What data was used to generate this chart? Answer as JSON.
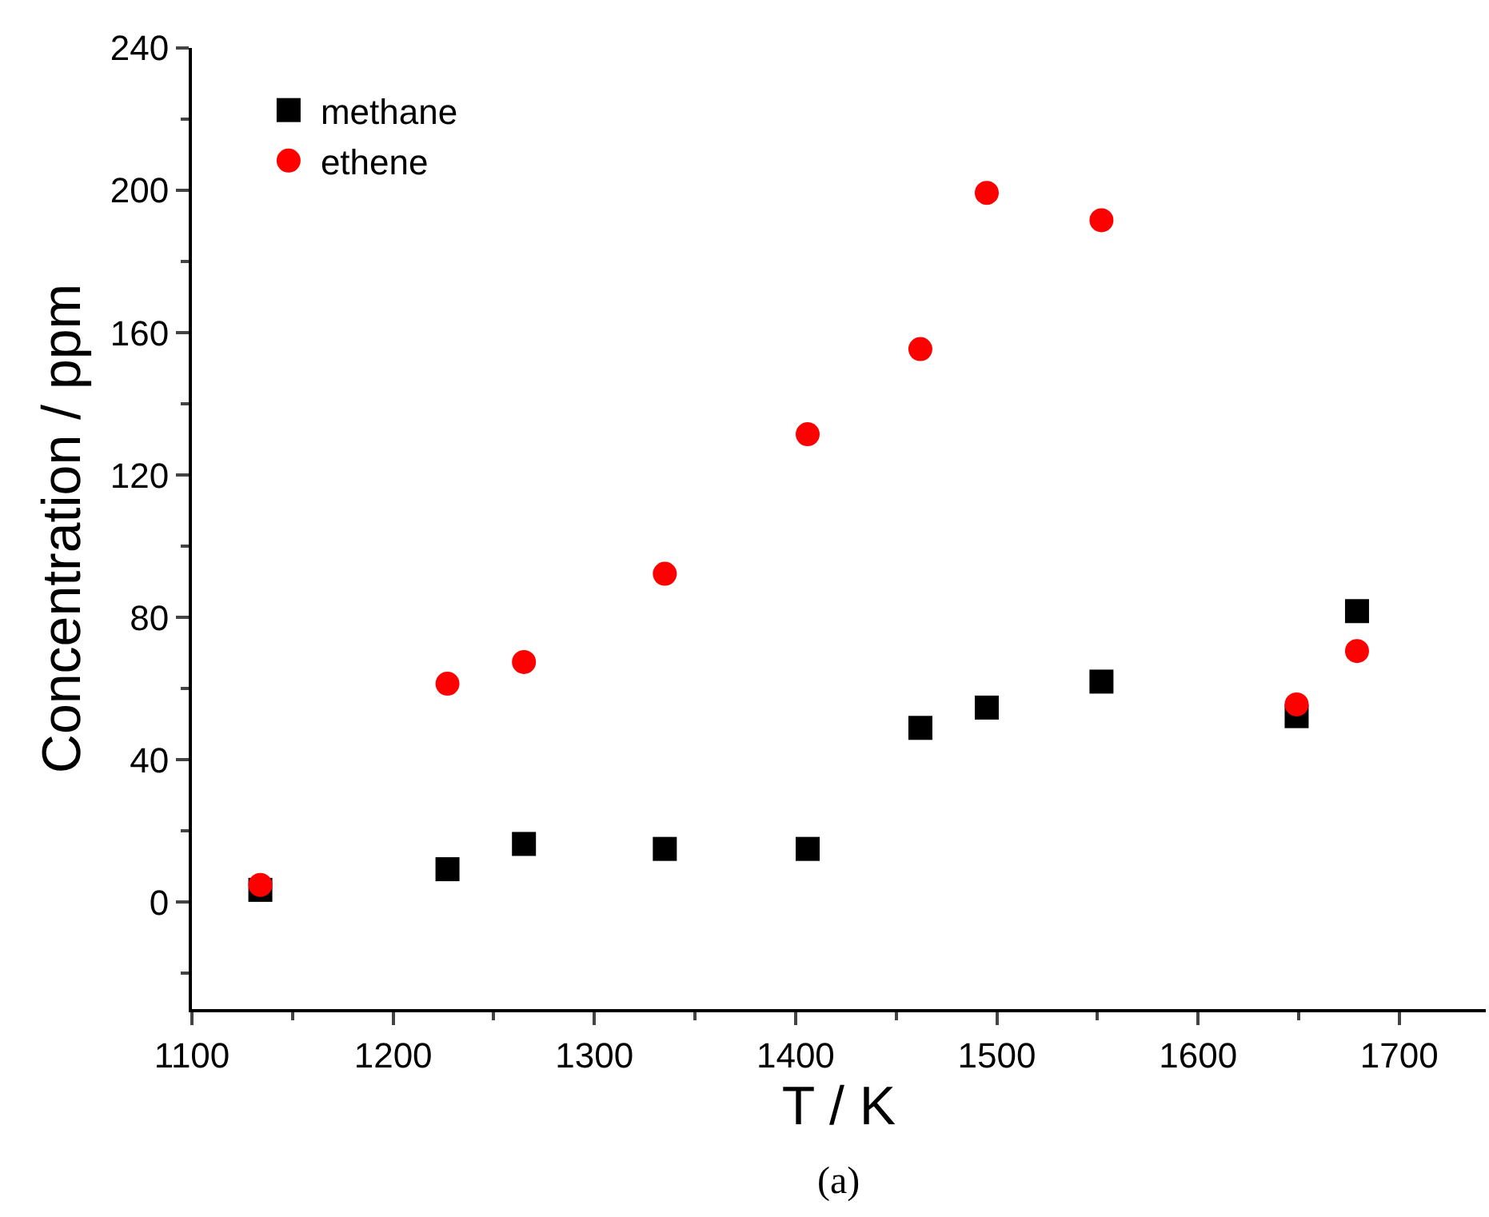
{
  "chart_data": {
    "type": "scatter",
    "xlabel": "T / K",
    "ylabel": "Concentration / ppm",
    "x": [
      1134,
      1227,
      1265,
      1335,
      1406,
      1462,
      1495,
      1552,
      1649,
      1679
    ],
    "series": [
      {
        "name": "methane",
        "color": "#000000",
        "marker": "square",
        "values": [
          3.5,
          9.3,
          16.4,
          15,
          15,
          49,
          54.7,
          62,
          52.3,
          81.8
        ]
      },
      {
        "name": "ethene",
        "color": "#ff0000",
        "marker": "circle",
        "values": [
          4.9,
          61.4,
          67.5,
          92.3,
          131.5,
          155.4,
          199.3,
          191.6,
          55.6,
          70.6
        ]
      }
    ],
    "xlim": [
      1100,
      1743
    ],
    "xticks": [
      1100,
      1200,
      1300,
      1400,
      1500,
      1600,
      1700
    ],
    "ylim": [
      -30,
      240
    ],
    "yticks": [
      0,
      40,
      80,
      120,
      160,
      200,
      240
    ],
    "legend": "top left",
    "annotations": [
      "(a)"
    ]
  }
}
